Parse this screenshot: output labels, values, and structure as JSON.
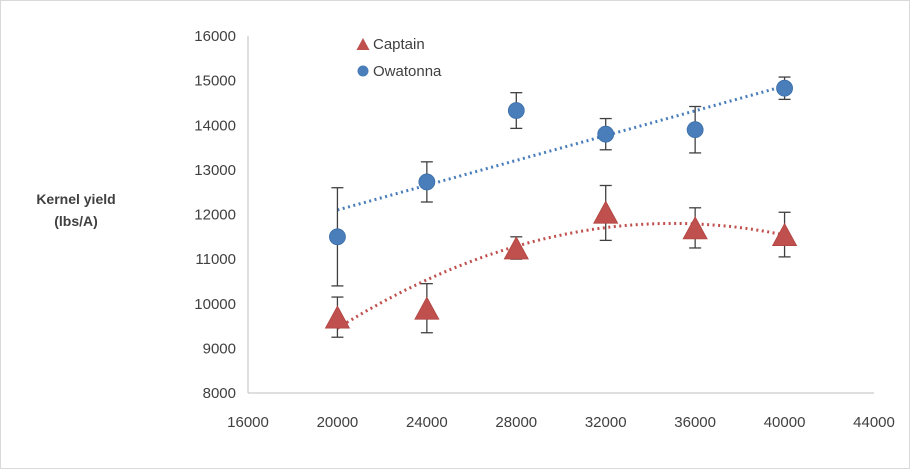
{
  "chart_data": {
    "type": "scatter",
    "title": "",
    "xlabel": "",
    "ylabel_line1": "Kernel yield",
    "ylabel_line2": "(lbs/A)",
    "xlim": [
      16000,
      44000
    ],
    "ylim": [
      8000,
      16000
    ],
    "x_ticks": [
      16000,
      20000,
      24000,
      28000,
      32000,
      36000,
      40000,
      44000
    ],
    "y_ticks": [
      8000,
      9000,
      10000,
      11000,
      12000,
      13000,
      14000,
      15000,
      16000
    ],
    "grid": false,
    "legend_position": "top-center",
    "series": [
      {
        "name": "Captain",
        "marker": "triangle",
        "color": "#c0504d",
        "x": [
          20000,
          24000,
          28000,
          32000,
          36000,
          40000
        ],
        "y": [
          9700,
          9900,
          11250,
          12050,
          11700,
          11550
        ],
        "err_low": [
          450,
          550,
          250,
          630,
          450,
          500
        ],
        "err_high": [
          450,
          550,
          250,
          600,
          450,
          500
        ],
        "trendline": {
          "type": "polynomial",
          "style": "dotted",
          "x_start": 20000,
          "x_end": 40000,
          "y_start": 9450,
          "y_peak": 11800,
          "x_peak": 35000,
          "y_end": 11600
        }
      },
      {
        "name": "Owatonna",
        "marker": "circle",
        "color": "#4a7ebb",
        "x": [
          20000,
          24000,
          28000,
          32000,
          36000,
          40000
        ],
        "y": [
          11500,
          12730,
          14330,
          13800,
          13900,
          14830
        ],
        "err_low": [
          1100,
          450,
          400,
          350,
          520,
          250
        ],
        "err_high": [
          1100,
          450,
          400,
          350,
          520,
          250
        ],
        "trendline": {
          "type": "linear",
          "style": "dotted",
          "x_start": 20000,
          "x_end": 40000,
          "y_start": 12100,
          "y_end": 14880
        }
      }
    ]
  }
}
